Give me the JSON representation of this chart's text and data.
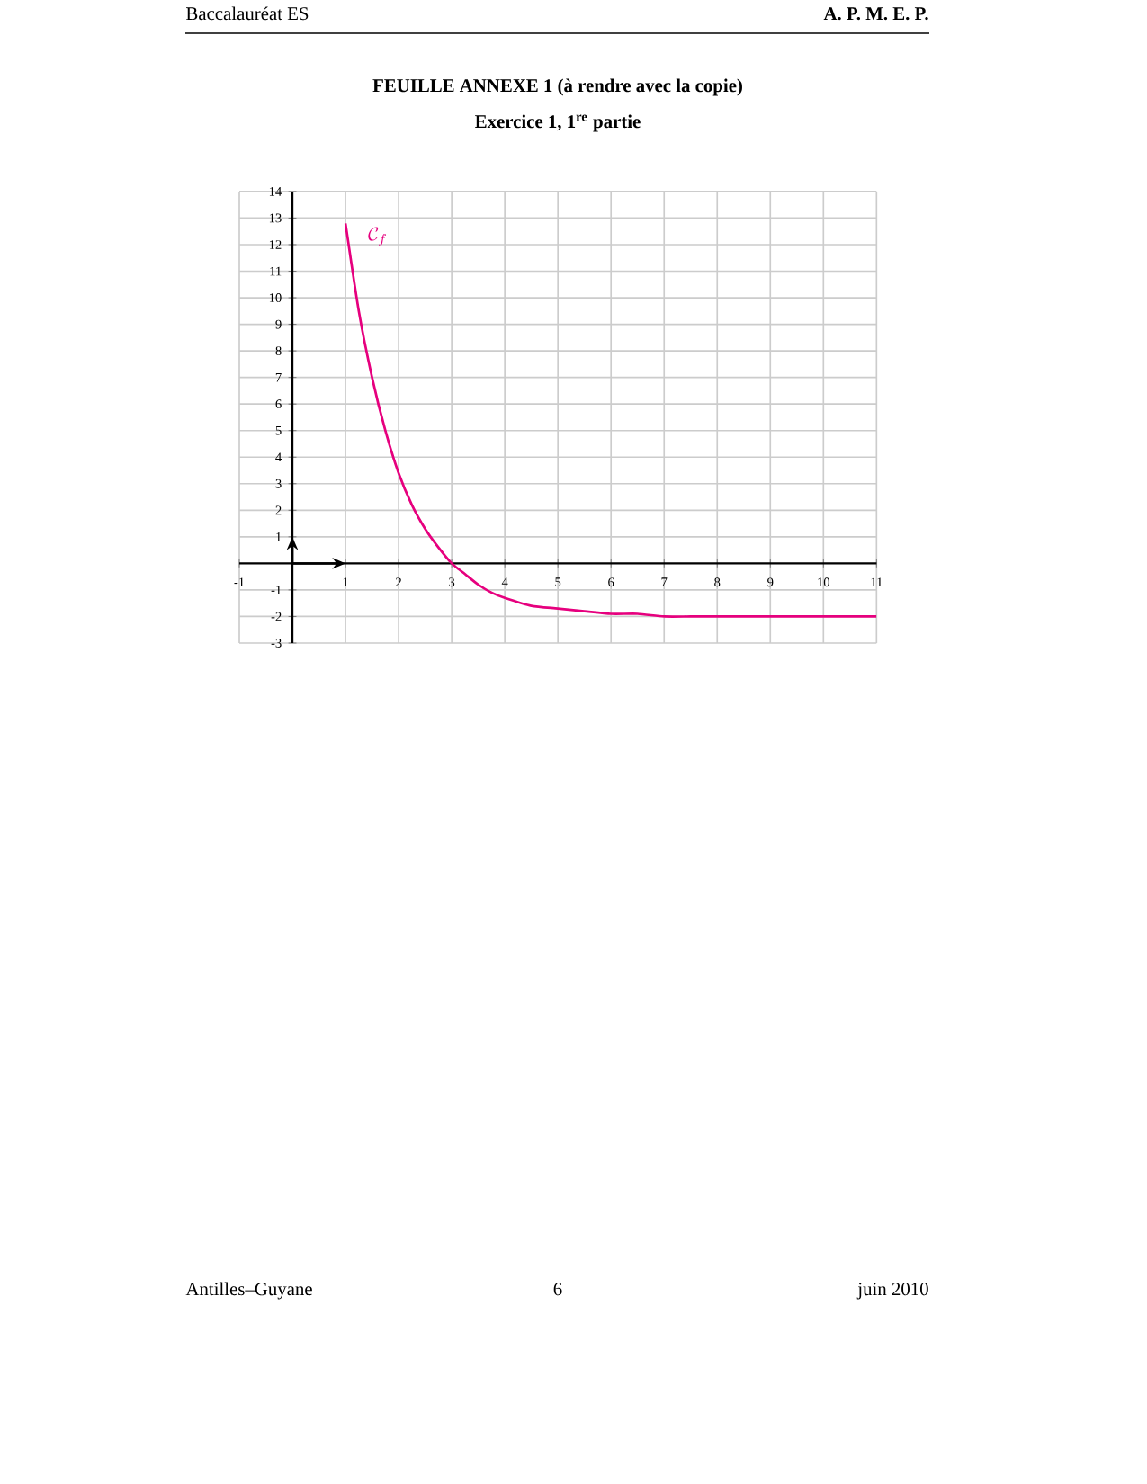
{
  "chart_data": {
    "type": "line",
    "title": "FEUILLE ANNEXE 1 (à rendre avec la copie)",
    "subtitle": "Exercice 1, 1$^{re}$ partie",
    "annotations": [
      "Baccalauréat ES",
      "A. P. M. E. P.",
      "Antilles–Guyane",
      "6",
      "juin 2010"
    ],
    "x": [
      1,
      1.25,
      1.5,
      1.75,
      2,
      2.25,
      2.5,
      2.75,
      3,
      3.25,
      3.5,
      3.75,
      4,
      4.5,
      5,
      5.5,
      6,
      6.5,
      7,
      7.5,
      8,
      9,
      10,
      11
    ],
    "series": [
      {
        "name": "\\mathcal{C}_f",
        "color": "#e6007e",
        "values": [
          12.8,
          9.5,
          7.0,
          5.0,
          3.4,
          2.2,
          1.3,
          0.6,
          0,
          -0.4,
          -0.8,
          -1.1,
          -1.3,
          -1.6,
          -1.7,
          -1.8,
          -1.9,
          -1.9,
          -2.0,
          -2.0,
          -2.0,
          -2.0,
          -2.0,
          -2.0
        ]
      }
    ],
    "xlim": [
      -1,
      11
    ],
    "ylim": [
      -3,
      14
    ],
    "xticks": [
      -1,
      1,
      2,
      3,
      4,
      5,
      6,
      7,
      8,
      9,
      10,
      11
    ],
    "yticks": [
      -3,
      -2,
      -1,
      1,
      2,
      3,
      4,
      5,
      6,
      7,
      8,
      9,
      10,
      11,
      12,
      13,
      14
    ],
    "grid": true
  }
}
